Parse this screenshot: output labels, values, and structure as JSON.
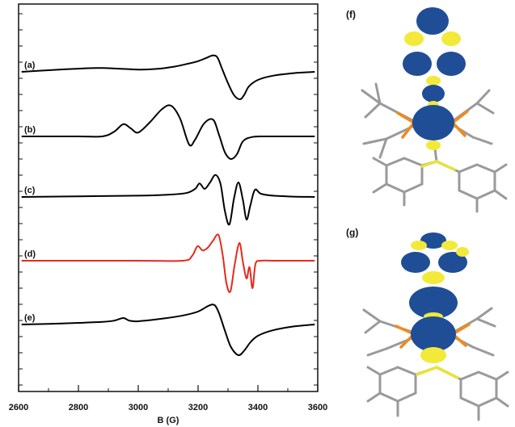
{
  "chart_data": {
    "type": "line",
    "xlabel": "B (G)",
    "xlim": [
      2600,
      3600
    ],
    "x_ticks": [
      "2600",
      "2800",
      "3000",
      "3200",
      "3400",
      "3600"
    ],
    "x_tick_values": [
      2600,
      2800,
      3000,
      3200,
      3400,
      3600
    ],
    "grid": false,
    "series": [
      {
        "label": "(a)",
        "color": "#000000",
        "baseline": 0.0,
        "x": [
          2610,
          2700,
          2780,
          2860,
          2930,
          3000,
          3060,
          3120,
          3170,
          3200,
          3230,
          3250,
          3265,
          3280,
          3300,
          3320,
          3340,
          3355,
          3370,
          3400,
          3450,
          3520,
          3590
        ],
        "y": [
          0,
          0.05,
          0.09,
          0.12,
          0.1,
          0.07,
          0.09,
          0.16,
          0.26,
          0.33,
          0.44,
          0.51,
          0.44,
          0.1,
          -0.35,
          -0.72,
          -0.85,
          -0.7,
          -0.45,
          -0.25,
          -0.12,
          -0.04,
          0.0
        ]
      },
      {
        "label": "(b)",
        "color": "#000000",
        "baseline": 0.0,
        "x": [
          2610,
          2800,
          2880,
          2920,
          2950,
          2975,
          3000,
          3040,
          3080,
          3110,
          3140,
          3170,
          3190,
          3220,
          3250,
          3270,
          3290,
          3310,
          3330,
          3350,
          3380,
          3420,
          3500,
          3590
        ],
        "y": [
          0,
          0,
          0.0,
          0.15,
          0.38,
          0.25,
          0.12,
          0.45,
          0.85,
          0.95,
          0.55,
          -0.25,
          -0.1,
          0.4,
          0.52,
          0.05,
          -0.5,
          -0.7,
          -0.55,
          -0.15,
          -0.02,
          0,
          0,
          0
        ]
      },
      {
        "label": "(c)",
        "color": "#000000",
        "baseline": 0.0,
        "x": [
          2610,
          2800,
          3000,
          3100,
          3160,
          3190,
          3205,
          3222,
          3240,
          3258,
          3275,
          3290,
          3305,
          3320,
          3335,
          3350,
          3362,
          3375,
          3390,
          3410,
          3450,
          3520,
          3590
        ],
        "y": [
          0,
          0.02,
          0.04,
          0.07,
          0.12,
          0.25,
          0.42,
          0.25,
          0.45,
          0.68,
          0.4,
          -0.45,
          -0.85,
          -0.05,
          0.45,
          -0.1,
          -0.7,
          -0.25,
          0.22,
          0.1,
          0.04,
          0.01,
          0.0
        ]
      },
      {
        "label": "(d)",
        "color": "#e8281c",
        "baseline": 0.0,
        "x": [
          2610,
          3000,
          3150,
          3180,
          3198,
          3215,
          3232,
          3250,
          3268,
          3282,
          3295,
          3308,
          3322,
          3338,
          3350,
          3362,
          3372,
          3382,
          3392,
          3410,
          3450,
          3590
        ],
        "y": [
          0,
          0,
          0.0,
          0.15,
          0.45,
          0.32,
          0.4,
          0.62,
          0.8,
          0.2,
          -0.7,
          -0.95,
          -0.15,
          0.55,
          -0.05,
          -0.55,
          -0.2,
          -0.85,
          -0.1,
          0.0,
          0.0,
          0.0
        ]
      },
      {
        "label": "(e)",
        "color": "#000000",
        "baseline": 0.0,
        "x": [
          2610,
          2700,
          2800,
          2880,
          2920,
          2950,
          2970,
          3000,
          3080,
          3150,
          3200,
          3235,
          3255,
          3270,
          3290,
          3310,
          3335,
          3355,
          3375,
          3400,
          3450,
          3520,
          3590
        ],
        "y": [
          0,
          0.02,
          0.05,
          0.08,
          0.12,
          0.2,
          0.12,
          0.1,
          0.18,
          0.28,
          0.4,
          0.58,
          0.6,
          0.35,
          -0.2,
          -0.7,
          -0.95,
          -0.8,
          -0.55,
          -0.35,
          -0.18,
          -0.06,
          0.0
        ]
      }
    ]
  },
  "panels": {
    "f": {
      "label": "(f)"
    },
    "g": {
      "label": "(g)"
    }
  },
  "colors": {
    "orbital_blue": "#1f4e96",
    "orbital_yellow": "#f2e93a",
    "phosphorus": "#f08a1e",
    "sulfur": "#e8e23a",
    "bond_gray": "#9a9a9a"
  }
}
